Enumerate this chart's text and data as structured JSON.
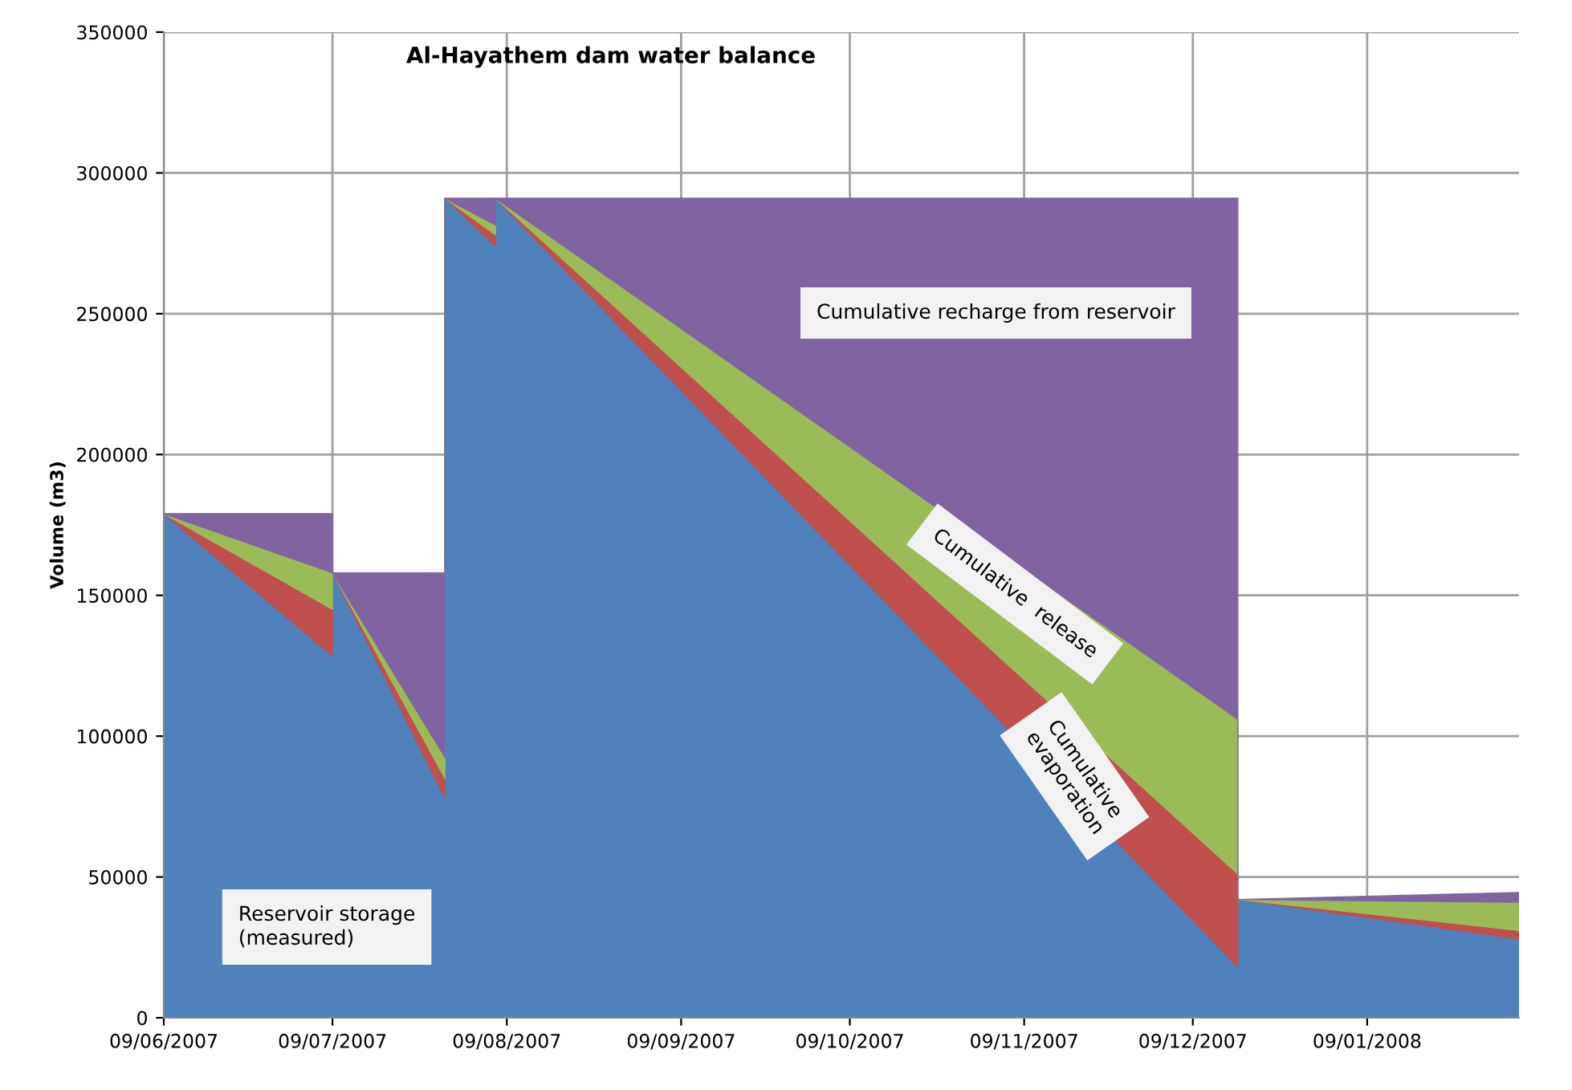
{
  "chart_data": {
    "type": "area",
    "stacked": true,
    "title": "Al-Hayathem dam water balance",
    "ylabel": "Volume (m3)",
    "x": [
      "2007-06-09",
      "2007-07-09",
      "2007-07-09",
      "2007-07-29",
      "2007-07-29",
      "2007-08-07",
      "2007-08-07",
      "2007-12-17",
      "2007-12-17",
      "2008-02-05"
    ],
    "series": [
      {
        "name": "Reservoir storage\n(measured)",
        "color": "#4f81bd",
        "values": [
          179000,
          128500,
          158000,
          78000,
          291000,
          274000,
          291000,
          18000,
          42000,
          28000
        ]
      },
      {
        "name": "Cumulative\nevaporation",
        "color": "#c0504d",
        "values": [
          0,
          16500,
          0,
          7000,
          0,
          4000,
          0,
          33000,
          0,
          3000
        ]
      },
      {
        "name": "Cumulative  release",
        "color": "#9bbb59",
        "values": [
          0,
          13000,
          0,
          7500,
          0,
          3500,
          0,
          55000,
          0,
          10000
        ]
      },
      {
        "name": "Cumulative recharge from reservoir",
        "color": "#8064a2",
        "values": [
          0,
          21000,
          0,
          65500,
          0,
          9500,
          0,
          185000,
          0,
          3500
        ]
      }
    ],
    "xlim": [
      "2007-06-09",
      "2008-02-05"
    ],
    "xticks": [
      {
        "value": "2007-06-09",
        "label": "09/06/2007"
      },
      {
        "value": "2007-07-09",
        "label": "09/07/2007"
      },
      {
        "value": "2007-08-09",
        "label": "09/08/2007"
      },
      {
        "value": "2007-09-09",
        "label": "09/09/2007"
      },
      {
        "value": "2007-10-09",
        "label": "09/10/2007"
      },
      {
        "value": "2007-11-09",
        "label": "09/11/2007"
      },
      {
        "value": "2007-12-09",
        "label": "09/12/2007"
      },
      {
        "value": "2008-01-09",
        "label": "09/01/2008"
      }
    ],
    "ylim": [
      0,
      350000
    ],
    "yticks": [
      0,
      50000,
      100000,
      150000,
      200000,
      250000,
      300000,
      350000
    ],
    "grid": true,
    "legend": false
  }
}
